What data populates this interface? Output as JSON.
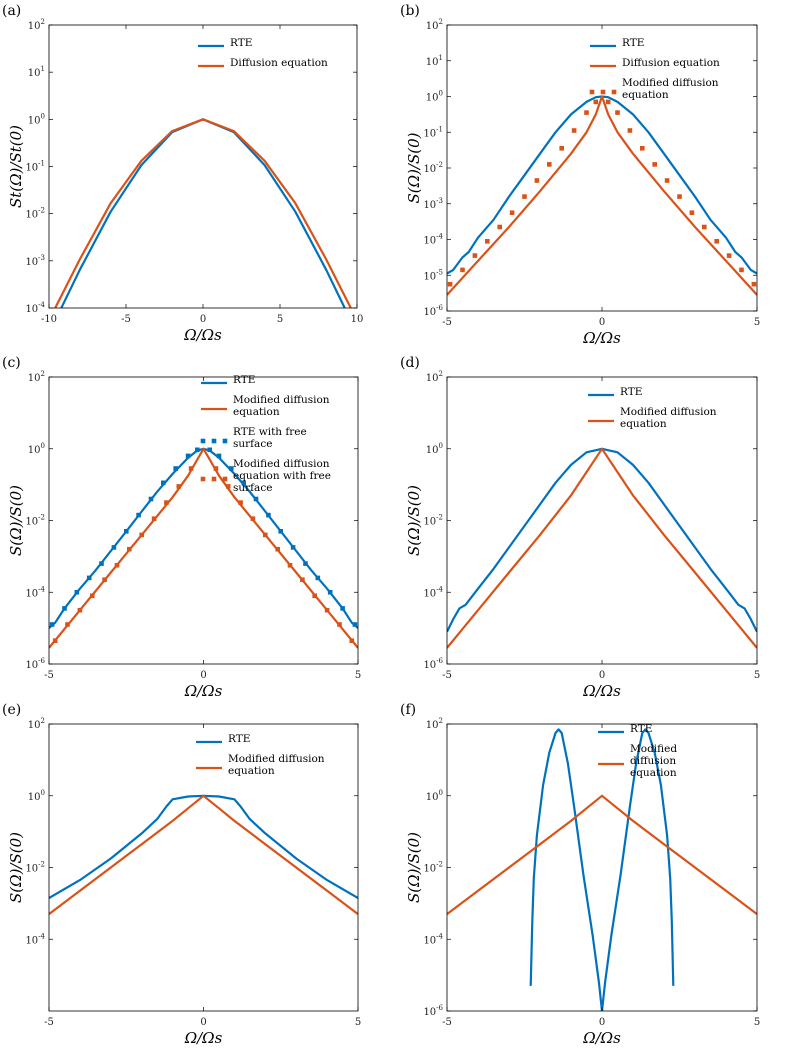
{
  "colors": {
    "rte": "#0072BD",
    "diffusion": "#D95319",
    "axis": "#000000"
  },
  "chart_data": [
    {
      "panel": "(a)",
      "type": "line",
      "xlabel": "Ω/Ωs",
      "ylabel": "St(Ω)/St(0)",
      "xlim": [
        -10,
        10
      ],
      "ylim_log10": [
        -4,
        2
      ],
      "xticks": [
        -10,
        -5,
        0,
        5,
        10
      ],
      "yticks_log10": [
        -4,
        -3,
        -2,
        -1,
        0,
        1,
        2
      ],
      "yticks_style": "compact",
      "legend": [
        "RTE",
        "Diffusion equation"
      ],
      "series": [
        {
          "name": "RTE",
          "style": "solid",
          "color": "#0072BD",
          "x": [
            -9.2,
            -8,
            -6,
            -4,
            -2,
            0,
            2,
            4,
            6,
            8,
            9.2
          ],
          "log10y": [
            -4.0,
            -3.19,
            -1.96,
            -0.97,
            -0.27,
            0,
            -0.27,
            -0.97,
            -1.96,
            -3.19,
            -4.0
          ]
        },
        {
          "name": "Diffusion equation",
          "style": "solid",
          "color": "#D95319",
          "x": [
            -9.6,
            -8,
            -6,
            -4,
            -2,
            0,
            2,
            4,
            6,
            8,
            9.6
          ],
          "log10y": [
            -4.0,
            -2.97,
            -1.78,
            -0.88,
            -0.25,
            0,
            -0.25,
            -0.88,
            -1.78,
            -2.97,
            -4.0
          ]
        }
      ]
    },
    {
      "panel": "(b)",
      "type": "line",
      "xlabel": "Ω/Ωs",
      "ylabel": "S(Ω)/S(0)",
      "xlim": [
        -5,
        5
      ],
      "ylim_log10": [
        -6,
        2
      ],
      "xticks": [
        -5,
        0,
        5
      ],
      "yticks_log10": [
        -6,
        -5,
        -4,
        -3,
        -2,
        -1,
        0,
        1,
        2
      ],
      "yticks_style": "compact",
      "legend": [
        "RTE",
        "Diffusion equation",
        "Modified diffusion equation"
      ],
      "series": [
        {
          "name": "RTE",
          "style": "solid",
          "color": "#0072BD",
          "x": [
            -5,
            -4.8,
            -4.5,
            -4.3,
            -4,
            -3.5,
            -3,
            -2.5,
            -2,
            -1.5,
            -1,
            -0.5,
            -0.2,
            0,
            0.2,
            0.5,
            1,
            1.5,
            2,
            2.5,
            3,
            3.5,
            4,
            4.3,
            4.5,
            4.8,
            5
          ],
          "log10y": [
            -4.95,
            -4.85,
            -4.5,
            -4.35,
            -3.95,
            -3.45,
            -2.8,
            -2.2,
            -1.6,
            -1.0,
            -0.5,
            -0.15,
            -0.02,
            0,
            -0.02,
            -0.15,
            -0.5,
            -1.0,
            -1.6,
            -2.2,
            -2.8,
            -3.45,
            -3.95,
            -4.35,
            -4.5,
            -4.85,
            -4.95
          ]
        },
        {
          "name": "Diffusion equation",
          "style": "solid",
          "color": "#D95319",
          "x": [
            -5,
            -4,
            -3,
            -2,
            -1,
            -0.5,
            -0.2,
            0,
            0.2,
            0.5,
            1,
            2,
            3,
            4,
            5
          ],
          "log10y": [
            -5.55,
            -4.6,
            -3.65,
            -2.65,
            -1.6,
            -1.0,
            -0.5,
            0,
            -0.5,
            -1.0,
            -1.6,
            -2.65,
            -3.65,
            -4.6,
            -5.55
          ]
        },
        {
          "name": "Modified diffusion equation",
          "style": "dotted",
          "color": "#D95319",
          "x": [
            -4.9,
            -4.5,
            -4.1,
            -3.7,
            -3.3,
            -2.9,
            -2.5,
            -2.1,
            -1.7,
            -1.3,
            -0.9,
            -0.5,
            -0.2,
            0.2,
            0.5,
            0.9,
            1.3,
            1.7,
            2.1,
            2.5,
            2.9,
            3.3,
            3.7,
            4.1,
            4.5,
            4.9
          ],
          "log10y": [
            -5.25,
            -4.85,
            -4.45,
            -4.05,
            -3.65,
            -3.25,
            -2.8,
            -2.35,
            -1.9,
            -1.45,
            -0.95,
            -0.45,
            -0.15,
            -0.15,
            -0.45,
            -0.95,
            -1.45,
            -1.9,
            -2.35,
            -2.8,
            -3.25,
            -3.65,
            -4.05,
            -4.45,
            -4.85,
            -5.25
          ]
        }
      ]
    },
    {
      "panel": "(c)",
      "type": "line",
      "xlabel": "Ω/Ωs",
      "ylabel": "S(Ω)/S(0)",
      "xlim": [
        -5,
        5
      ],
      "ylim_log10": [
        -6,
        2
      ],
      "xticks": [
        -5,
        0,
        5
      ],
      "yticks_log10": [
        -6,
        -4,
        -2,
        0,
        2
      ],
      "yticks_style": "full",
      "legend": [
        "RTE",
        "Modified diffusion equation",
        "RTE with free surface",
        "Modified diffusion equation with free surface"
      ],
      "series": [
        {
          "name": "RTE",
          "style": "solid",
          "color": "#0072BD",
          "x": [
            -5,
            -4.8,
            -4.5,
            -4,
            -3.5,
            -3,
            -2.5,
            -2,
            -1.5,
            -1,
            -0.5,
            -0.2,
            0,
            0.2,
            0.5,
            1,
            1.5,
            2,
            2.5,
            3,
            3.5,
            4,
            4.5,
            4.8,
            5
          ],
          "log10y": [
            -5.0,
            -4.85,
            -4.45,
            -3.9,
            -3.4,
            -2.85,
            -2.3,
            -1.75,
            -1.2,
            -0.7,
            -0.25,
            -0.05,
            0,
            -0.05,
            -0.25,
            -0.7,
            -1.2,
            -1.75,
            -2.3,
            -2.85,
            -3.4,
            -3.9,
            -4.45,
            -4.85,
            -5.0
          ]
        },
        {
          "name": "Modified diffusion equation",
          "style": "solid",
          "color": "#D95319",
          "x": [
            -5,
            -4,
            -3,
            -2,
            -1,
            -0.5,
            -0.2,
            0,
            0.2,
            0.5,
            1,
            2,
            3,
            4,
            5
          ],
          "log10y": [
            -5.55,
            -4.5,
            -3.45,
            -2.4,
            -1.35,
            -0.75,
            -0.3,
            0,
            -0.3,
            -0.75,
            -1.35,
            -2.4,
            -3.45,
            -4.5,
            -5.55
          ]
        },
        {
          "name": "RTE with free surface",
          "style": "dotted",
          "color": "#0072BD",
          "x": [
            -4.9,
            -4.5,
            -4.1,
            -3.7,
            -3.3,
            -2.9,
            -2.5,
            -2.1,
            -1.7,
            -1.3,
            -0.9,
            -0.5,
            -0.2,
            0.2,
            0.5,
            0.9,
            1.3,
            1.7,
            2.1,
            2.5,
            2.9,
            3.3,
            3.7,
            4.1,
            4.5,
            4.9
          ],
          "log10y": [
            -4.9,
            -4.45,
            -4.0,
            -3.6,
            -3.2,
            -2.75,
            -2.3,
            -1.85,
            -1.4,
            -0.95,
            -0.55,
            -0.2,
            -0.03,
            -0.03,
            -0.2,
            -0.55,
            -0.95,
            -1.4,
            -1.85,
            -2.3,
            -2.75,
            -3.2,
            -3.6,
            -4.0,
            -4.45,
            -4.9
          ]
        },
        {
          "name": "Modified diffusion equation with free surface",
          "style": "dotted",
          "color": "#D95319",
          "x": [
            -4.8,
            -4.4,
            -4.0,
            -3.6,
            -3.2,
            -2.8,
            -2.4,
            -2.0,
            -1.6,
            -1.2,
            -0.8,
            -0.4,
            0.4,
            0.8,
            1.2,
            1.6,
            2.0,
            2.4,
            2.8,
            3.2,
            3.6,
            4.0,
            4.4,
            4.8
          ],
          "log10y": [
            -5.35,
            -4.9,
            -4.5,
            -4.1,
            -3.65,
            -3.25,
            -2.8,
            -2.4,
            -1.95,
            -1.5,
            -1.05,
            -0.55,
            -0.55,
            -1.05,
            -1.5,
            -1.95,
            -2.4,
            -2.8,
            -3.25,
            -3.65,
            -4.1,
            -4.5,
            -4.9,
            -5.35
          ]
        }
      ]
    },
    {
      "panel": "(d)",
      "type": "line",
      "xlabel": "Ω/Ωs",
      "ylabel": "S(Ω)/S(0)",
      "xlim": [
        -5,
        5
      ],
      "ylim_log10": [
        -6,
        2
      ],
      "xticks": [
        -5,
        0,
        5
      ],
      "yticks_log10": [
        -6,
        -4,
        -2,
        0,
        2
      ],
      "yticks_style": "full",
      "legend": [
        "RTE",
        "Modified diffusion equation"
      ],
      "series": [
        {
          "name": "RTE",
          "style": "solid",
          "color": "#0072BD",
          "x": [
            -5,
            -4.8,
            -4.6,
            -4.4,
            -4,
            -3.5,
            -3,
            -2.5,
            -2,
            -1.5,
            -1,
            -0.5,
            0,
            0.5,
            1,
            1.5,
            2,
            2.5,
            3,
            3.5,
            4,
            4.4,
            4.6,
            4.8,
            5
          ],
          "log10y": [
            -5.1,
            -4.75,
            -4.45,
            -4.35,
            -3.9,
            -3.35,
            -2.75,
            -2.15,
            -1.55,
            -0.95,
            -0.45,
            -0.1,
            0,
            -0.1,
            -0.45,
            -0.95,
            -1.55,
            -2.15,
            -2.75,
            -3.35,
            -3.9,
            -4.35,
            -4.45,
            -4.75,
            -5.1
          ]
        },
        {
          "name": "Modified diffusion equation",
          "style": "solid",
          "color": "#D95319",
          "x": [
            -5,
            -4,
            -3,
            -2,
            -1,
            -0.5,
            0,
            0.5,
            1,
            2,
            3,
            4,
            5
          ],
          "log10y": [
            -5.55,
            -4.5,
            -3.45,
            -2.4,
            -1.3,
            -0.65,
            0,
            -0.65,
            -1.3,
            -2.4,
            -3.45,
            -4.5,
            -5.55
          ]
        }
      ]
    },
    {
      "panel": "(e)",
      "type": "line",
      "xlabel": "Ω/Ωs",
      "ylabel": "S(Ω)/S(0)",
      "xlim": [
        -5,
        5
      ],
      "ylim_log10": [
        -6,
        2
      ],
      "xticks": [
        -5,
        0,
        5
      ],
      "yticks_log10": [
        -4,
        -2,
        0,
        2
      ],
      "yticks_style": "full",
      "legend": [
        "RTE",
        "Modified diffusion equation"
      ],
      "series": [
        {
          "name": "RTE",
          "style": "solid",
          "color": "#0072BD",
          "x": [
            -5,
            -4,
            -3,
            -2,
            -1.5,
            -1.2,
            -1,
            -0.5,
            0,
            0.5,
            1,
            1.2,
            1.5,
            2,
            3,
            4,
            5
          ],
          "log10y": [
            -2.85,
            -2.35,
            -1.75,
            -1.05,
            -0.65,
            -0.3,
            -0.1,
            -0.02,
            0,
            -0.02,
            -0.1,
            -0.3,
            -0.65,
            -1.05,
            -1.75,
            -2.35,
            -2.85
          ]
        },
        {
          "name": "Modified diffusion equation",
          "style": "solid",
          "color": "#D95319",
          "x": [
            -5,
            -4,
            -3,
            -2,
            -1,
            -0.5,
            0,
            0.5,
            1,
            2,
            3,
            4,
            5
          ],
          "log10y": [
            -3.3,
            -2.65,
            -2.0,
            -1.35,
            -0.7,
            -0.35,
            0,
            -0.35,
            -0.7,
            -1.35,
            -2.0,
            -2.65,
            -3.3
          ]
        }
      ]
    },
    {
      "panel": "(f)",
      "type": "line",
      "xlabel": "Ω/Ωs",
      "ylabel": "S(Ω)/S(0)",
      "xlim": [
        -5,
        5
      ],
      "ylim_log10": [
        -6,
        2
      ],
      "xticks": [
        -5,
        0,
        5
      ],
      "yticks_log10": [
        -6,
        -4,
        -2,
        0,
        2
      ],
      "yticks_style": "full",
      "legend": [
        "RTE",
        "Modified diffusion equation"
      ],
      "series": [
        {
          "name": "RTE",
          "style": "solid",
          "color": "#0072BD",
          "x": [
            -2.3,
            -2.25,
            -2.2,
            -2.1,
            -1.9,
            -1.7,
            -1.5,
            -1.4,
            -1.3,
            -1.1,
            -0.9,
            -0.6,
            -0.3,
            -0.1,
            0,
            0.1,
            0.3,
            0.6,
            0.9,
            1.1,
            1.3,
            1.4,
            1.5,
            1.7,
            1.9,
            2.1,
            2.2,
            2.25,
            2.3
          ],
          "log10y": [
            -5.3,
            -3.5,
            -2.3,
            -1.1,
            0.3,
            1.2,
            1.75,
            1.85,
            1.75,
            0.9,
            -0.3,
            -2.2,
            -3.9,
            -5.2,
            -6.0,
            -5.2,
            -3.9,
            -2.2,
            -0.3,
            0.9,
            1.75,
            1.85,
            1.75,
            1.2,
            0.3,
            -1.1,
            -2.3,
            -3.5,
            -5.3
          ]
        },
        {
          "name": "Modified diffusion equation",
          "style": "solid",
          "color": "#D95319",
          "x": [
            -5,
            -4,
            -3,
            -2,
            -1,
            -0.5,
            0,
            0.5,
            1,
            2,
            3,
            4,
            5
          ],
          "log10y": [
            -3.3,
            -2.65,
            -2.0,
            -1.35,
            -0.7,
            -0.35,
            0,
            -0.35,
            -0.7,
            -1.35,
            -2.0,
            -2.65,
            -3.3
          ]
        }
      ]
    }
  ]
}
